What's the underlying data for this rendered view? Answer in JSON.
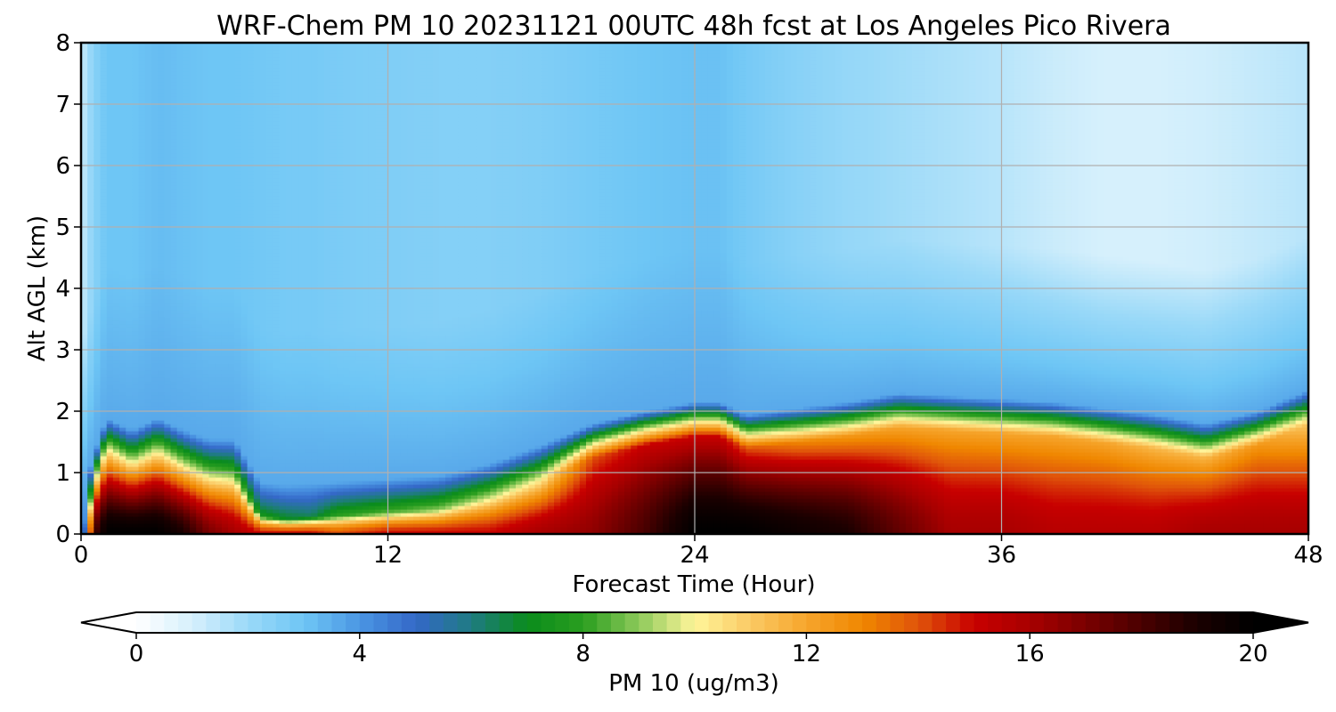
{
  "chart_data": {
    "type": "heatmap",
    "title": "WRF-Chem PM 10  20231121 00UTC 48h fcst at Los Angeles Pico Rivera",
    "xlabel": "Forecast Time (Hour)",
    "ylabel": "Alt AGL (km)",
    "xlim": [
      0,
      48
    ],
    "ylim": [
      0,
      8
    ],
    "x_ticks": [
      "0",
      "12",
      "24",
      "36",
      "48"
    ],
    "y_ticks": [
      "0",
      "1",
      "2",
      "3",
      "4",
      "5",
      "6",
      "7",
      "8"
    ],
    "grid": true,
    "colorbar": {
      "label": "PM 10  (ug/m3)",
      "range": [
        0,
        20
      ],
      "extend": "both",
      "ticks": [
        "0",
        "4",
        "8",
        "12",
        "16",
        "20"
      ],
      "stops": [
        {
          "v": 0,
          "c": "#ffffff"
        },
        {
          "v": 1,
          "c": "#d6f0fc"
        },
        {
          "v": 2,
          "c": "#9ad9f8"
        },
        {
          "v": 3,
          "c": "#6ec6f5"
        },
        {
          "v": 4,
          "c": "#4b96e3"
        },
        {
          "v": 5,
          "c": "#3468c8"
        },
        {
          "v": 6,
          "c": "#1f7b82"
        },
        {
          "v": 7,
          "c": "#0a8c1c"
        },
        {
          "v": 8,
          "c": "#2a9e1f"
        },
        {
          "v": 9,
          "c": "#8dc95a"
        },
        {
          "v": 10,
          "c": "#fff59a"
        },
        {
          "v": 11,
          "c": "#fac964"
        },
        {
          "v": 12,
          "c": "#f6a52c"
        },
        {
          "v": 13,
          "c": "#f08700"
        },
        {
          "v": 14,
          "c": "#e0540a"
        },
        {
          "v": 15,
          "c": "#c80000"
        },
        {
          "v": 16,
          "c": "#a80000"
        },
        {
          "v": 17,
          "c": "#7a0000"
        },
        {
          "v": 18,
          "c": "#4a0000"
        },
        {
          "v": 19,
          "c": "#1a0000"
        },
        {
          "v": 20,
          "c": "#000000"
        }
      ]
    },
    "x": [
      0,
      0.5,
      1,
      2,
      3,
      4,
      5,
      6,
      7,
      8,
      9,
      10,
      12,
      14,
      16,
      18,
      20,
      22,
      24,
      25,
      26,
      28,
      30,
      32,
      34,
      36,
      38,
      40,
      42,
      44,
      46,
      48
    ],
    "y": [
      0,
      0.25,
      0.5,
      0.75,
      1,
      1.25,
      1.5,
      1.75,
      2,
      2.25,
      2.5,
      2.75,
      3,
      3.5,
      4,
      4.5,
      5,
      5.5,
      6,
      6.5,
      7,
      7.5,
      8
    ],
    "profiles": {
      "note_columns": "per-time vertical structure of PM10 (ug/m3)",
      "columns": [
        {
          "t": 0,
          "hb": 0.05,
          "top": 2.0,
          "top_lo": 1.0,
          "peak": 1.0,
          "amb": 1.2
        },
        {
          "t": 0.5,
          "hb": 0.75,
          "top": 10.5,
          "top_lo": 8.0,
          "peak": 18.0,
          "amb": 2.4
        },
        {
          "t": 1,
          "hb": 1.35,
          "top": 10.5,
          "top_lo": 7.5,
          "peak": 20.0,
          "amb": 3.0
        },
        {
          "t": 2,
          "hb": 1.15,
          "top": 10.0,
          "top_lo": 7.0,
          "peak": 20.0,
          "amb": 3.0
        },
        {
          "t": 3,
          "hb": 1.35,
          "top": 10.0,
          "top_lo": 7.0,
          "peak": 20.0,
          "amb": 3.2
        },
        {
          "t": 4,
          "hb": 1.15,
          "top": 9.5,
          "top_lo": 6.0,
          "peak": 19.0,
          "amb": 3.1
        },
        {
          "t": 5,
          "hb": 1.0,
          "top": 9.0,
          "top_lo": 5.0,
          "peak": 17.0,
          "amb": 3.0
        },
        {
          "t": 6,
          "hb": 1.0,
          "top": 8.5,
          "top_lo": 5.0,
          "peak": 16.0,
          "amb": 3.0
        },
        {
          "t": 7,
          "hb": 0.3,
          "top": 7.5,
          "top_lo": 4.5,
          "peak": 15.0,
          "amb": 2.9
        },
        {
          "t": 8,
          "hb": 0.25,
          "top": 7.0,
          "top_lo": 4.5,
          "peak": 15.0,
          "amb": 2.8
        },
        {
          "t": 9,
          "hb": 0.28,
          "top": 6.5,
          "top_lo": 4.5,
          "peak": 15.0,
          "amb": 2.8
        },
        {
          "t": 10,
          "hb": 0.3,
          "top": 8.0,
          "top_lo": 4.8,
          "peak": 14.0,
          "amb": 2.7
        },
        {
          "t": 12,
          "hb": 0.35,
          "top": 8.5,
          "top_lo": 5.0,
          "peak": 15.0,
          "amb": 2.6
        },
        {
          "t": 14,
          "hb": 0.4,
          "top": 9.0,
          "top_lo": 5.0,
          "peak": 15.0,
          "amb": 2.5
        },
        {
          "t": 16,
          "hb": 0.6,
          "top": 9.5,
          "top_lo": 5.0,
          "peak": 15.0,
          "amb": 2.5
        },
        {
          "t": 18,
          "hb": 0.9,
          "top": 10.0,
          "top_lo": 5.0,
          "peak": 16.0,
          "amb": 2.6
        },
        {
          "t": 20,
          "hb": 1.25,
          "top": 14.0,
          "top_lo": 5.0,
          "peak": 16.5,
          "amb": 2.8
        },
        {
          "t": 22,
          "hb": 1.45,
          "top": 15.0,
          "top_lo": 5.0,
          "peak": 18.0,
          "amb": 3.0
        },
        {
          "t": 24,
          "hb": 1.6,
          "top": 15.0,
          "top_lo": 5.0,
          "peak": 20.0,
          "amb": 3.1
        },
        {
          "t": 25,
          "hb": 1.6,
          "top": 15.0,
          "top_lo": 5.0,
          "peak": 20.0,
          "amb": 3.1
        },
        {
          "t": 26,
          "hb": 1.4,
          "top": 14.0,
          "top_lo": 5.0,
          "peak": 20.0,
          "amb": 2.8
        },
        {
          "t": 28,
          "hb": 1.5,
          "top": 13.0,
          "top_lo": 5.0,
          "peak": 19.5,
          "amb": 2.4
        },
        {
          "t": 30,
          "hb": 1.6,
          "top": 12.5,
          "top_lo": 5.0,
          "peak": 19.0,
          "amb": 2.1
        },
        {
          "t": 32,
          "hb": 1.75,
          "top": 12.0,
          "top_lo": 5.0,
          "peak": 17.5,
          "amb": 1.9
        },
        {
          "t": 34,
          "hb": 1.7,
          "top": 12.0,
          "top_lo": 5.0,
          "peak": 16.0,
          "amb": 1.7
        },
        {
          "t": 36,
          "hb": 1.65,
          "top": 12.0,
          "top_lo": 5.0,
          "peak": 16.0,
          "amb": 1.5
        },
        {
          "t": 38,
          "hb": 1.6,
          "top": 12.0,
          "top_lo": 5.0,
          "peak": 15.5,
          "amb": 1.2
        },
        {
          "t": 40,
          "hb": 1.5,
          "top": 12.0,
          "top_lo": 5.0,
          "peak": 15.5,
          "amb": 1.0
        },
        {
          "t": 42,
          "hb": 1.4,
          "top": 11.5,
          "top_lo": 5.0,
          "peak": 15.5,
          "amb": 1.0
        },
        {
          "t": 44,
          "hb": 1.25,
          "top": 11.5,
          "top_lo": 5.0,
          "peak": 16.0,
          "amb": 1.1
        },
        {
          "t": 46,
          "hb": 1.45,
          "top": 12.5,
          "top_lo": 5.0,
          "peak": 16.0,
          "amb": 1.3
        },
        {
          "t": 48,
          "hb": 1.8,
          "top": 11.0,
          "top_lo": 5.0,
          "peak": 16.0,
          "amb": 1.5
        }
      ]
    }
  }
}
